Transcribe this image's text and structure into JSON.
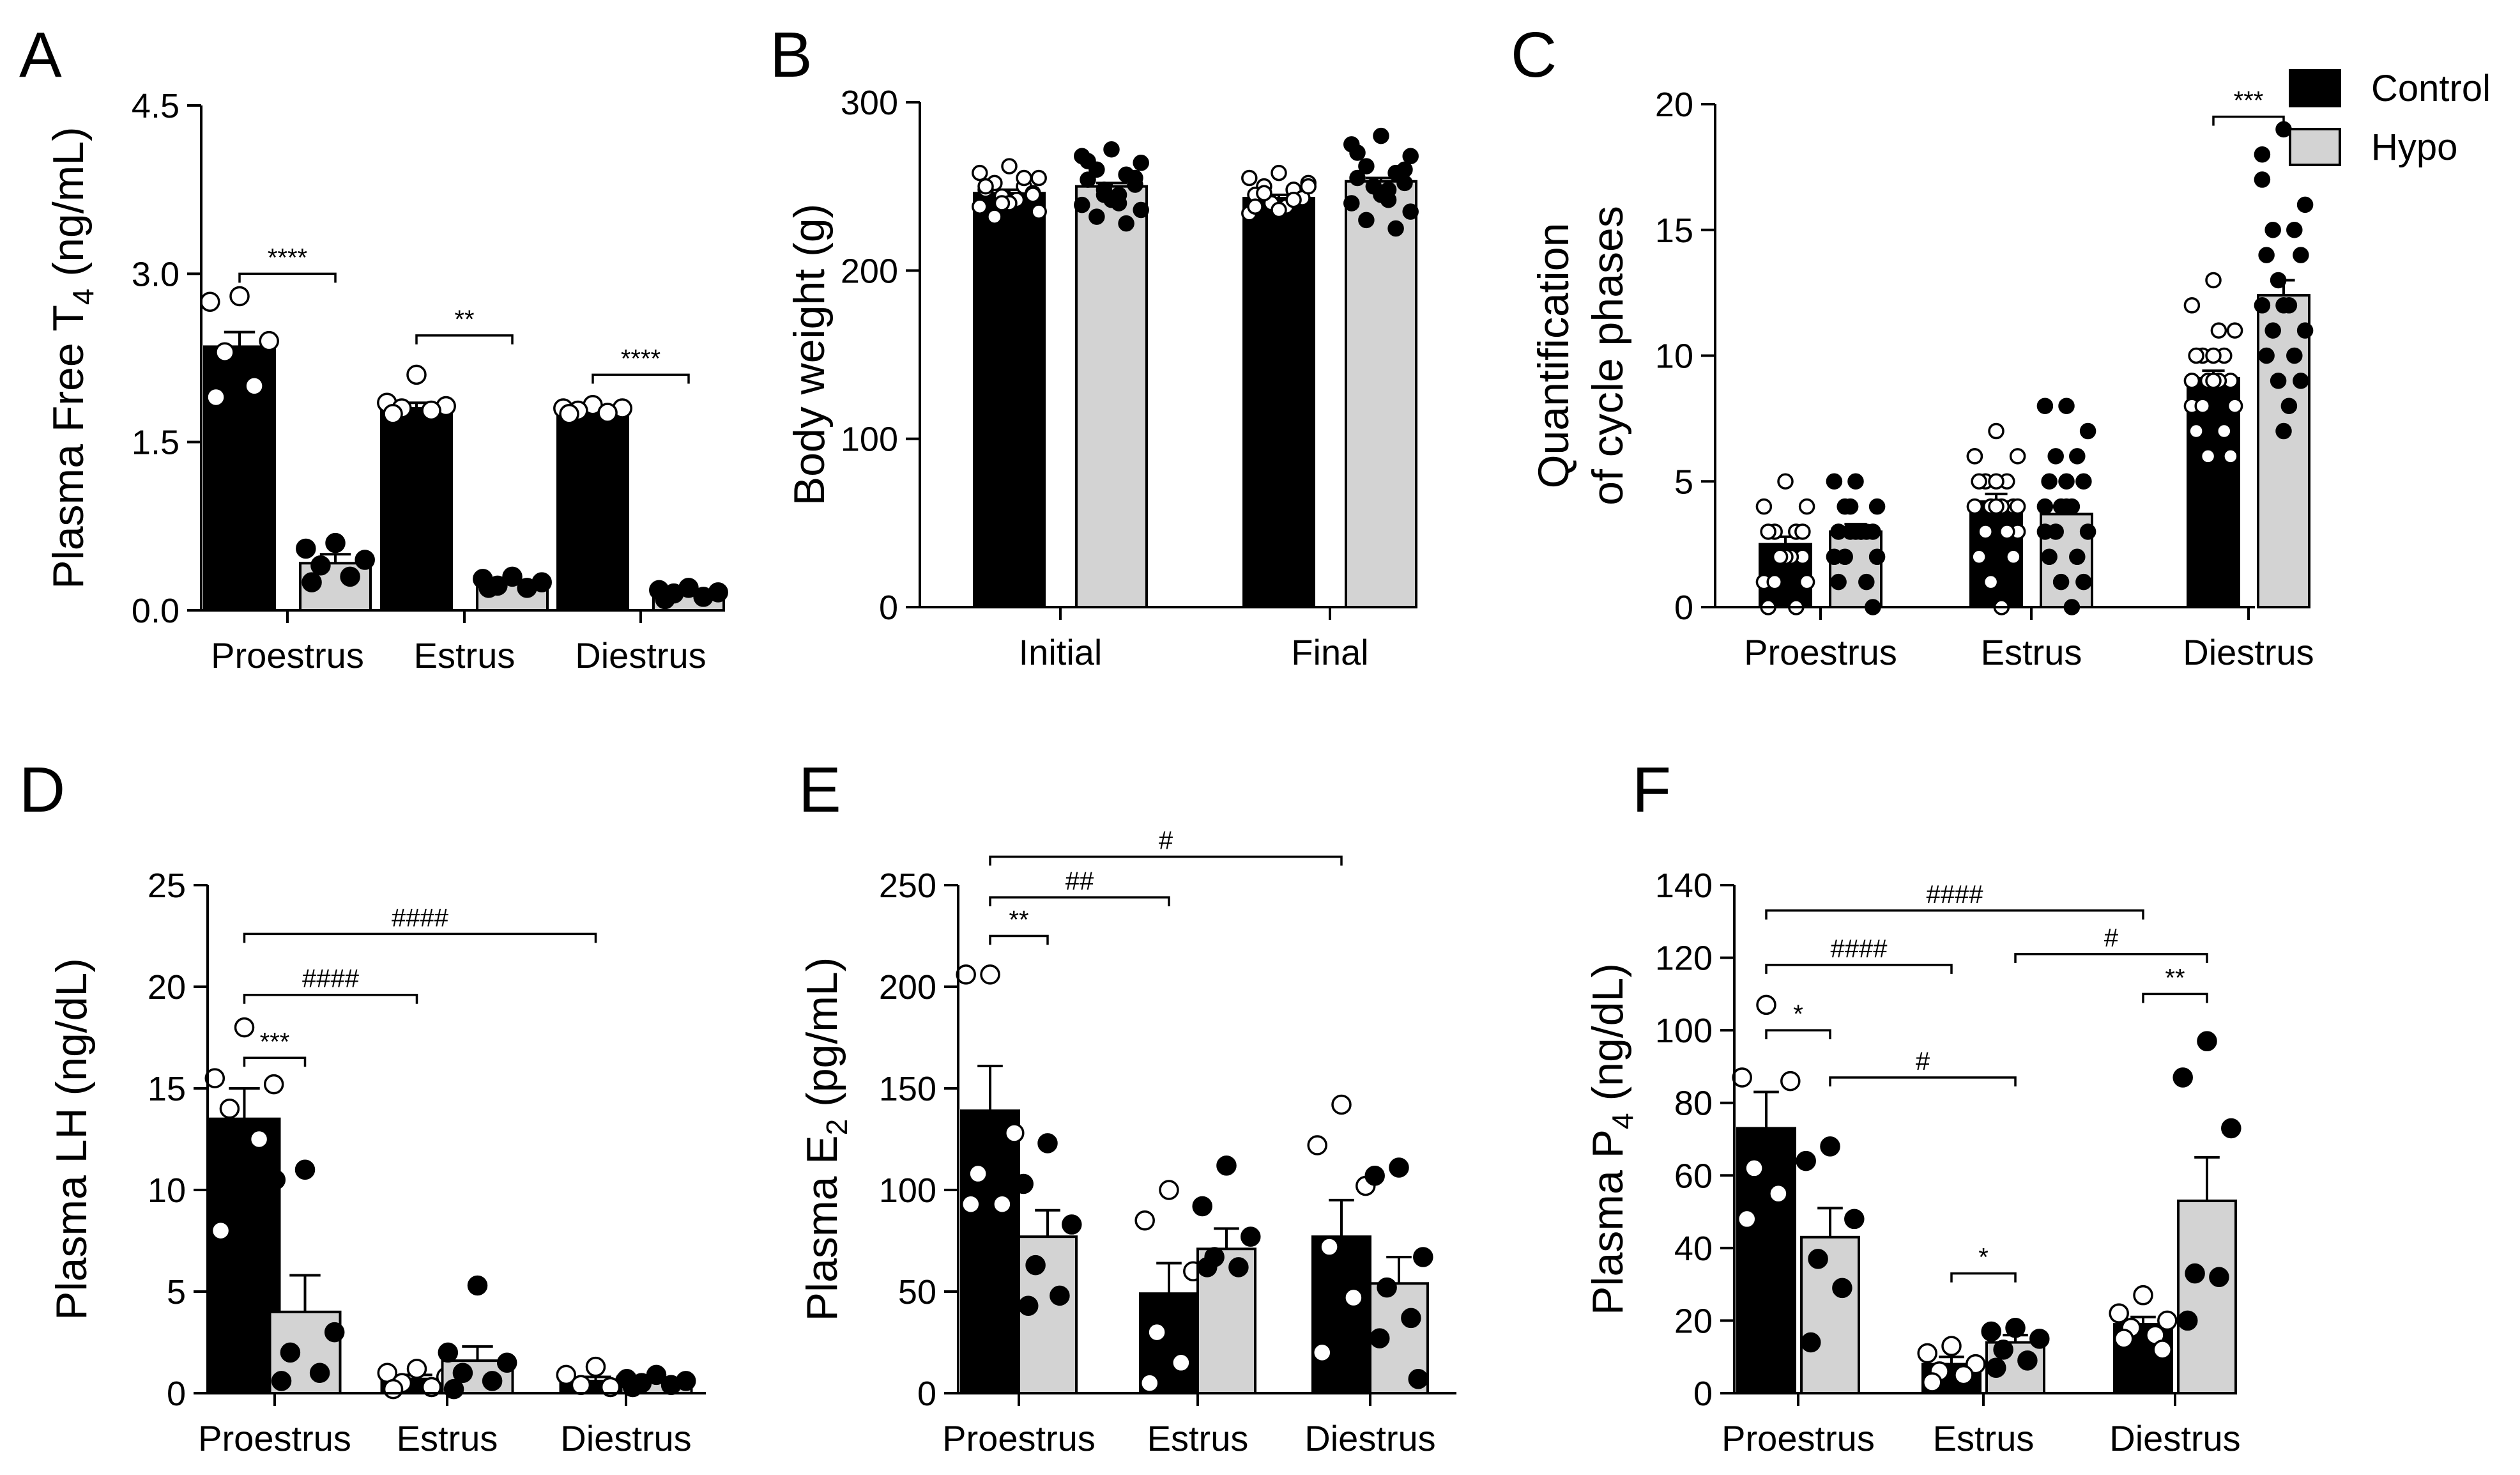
{
  "figure": {
    "legend": [
      {
        "label": "Control",
        "color": "#000000"
      },
      {
        "label": "Hypo",
        "color": "#d3d3d3"
      }
    ],
    "colors": {
      "control": "#000000",
      "hypo": "#d3d3d3",
      "axis": "#000000"
    }
  },
  "chart_data": [
    {
      "panel": "A",
      "type": "bar",
      "ylabel_main": "Plasma Free T",
      "ylabel_sub": "4",
      "ylabel_tail": " (ng/mL)",
      "categories": [
        "Proestrus",
        "Estrus",
        "Diestrus"
      ],
      "ylim": [
        0,
        4.5
      ],
      "yticks": [
        "0.0",
        "1.5",
        "3.0",
        "4.5"
      ],
      "ytick_values": [
        0,
        1.5,
        3.0,
        4.5
      ],
      "series": [
        {
          "name": "Control",
          "values": [
            2.35,
            1.8,
            1.75
          ],
          "errors": [
            0.13,
            0.05,
            0.02
          ],
          "points": [
            [
              2.8,
              2.75,
              2.4,
              2.3,
              2.0,
              1.9
            ],
            [
              2.1,
              1.85,
              1.82,
              1.8,
              1.78,
              1.75
            ],
            [
              1.83,
              1.8,
              1.8,
              1.78,
              1.76,
              1.75
            ]
          ]
        },
        {
          "name": "Hypo",
          "values": [
            0.42,
            0.24,
            0.16
          ],
          "errors": [
            0.08,
            0.03,
            0.02
          ],
          "points": [
            [
              0.6,
              0.55,
              0.45,
              0.4,
              0.3,
              0.25
            ],
            [
              0.3,
              0.28,
              0.25,
              0.22,
              0.2,
              0.2
            ],
            [
              0.2,
              0.18,
              0.16,
              0.15,
              0.12,
              0.1
            ]
          ]
        }
      ],
      "annotations": [
        {
          "label": "****",
          "group_from": 0,
          "bar_from": 0,
          "group_to": 0,
          "bar_to": 1,
          "y": 3.0
        },
        {
          "label": "**",
          "group_from": 1,
          "bar_from": 0,
          "group_to": 1,
          "bar_to": 1,
          "y": 2.45
        },
        {
          "label": "****",
          "group_from": 2,
          "bar_from": 0,
          "group_to": 2,
          "bar_to": 1,
          "y": 2.1
        }
      ]
    },
    {
      "panel": "B",
      "type": "bar",
      "ylabel_main": "Body weight (g)",
      "categories": [
        "Initial",
        "Final"
      ],
      "ylim": [
        0,
        300
      ],
      "yticks": [
        "0",
        "100",
        "200",
        "300"
      ],
      "ytick_values": [
        0,
        100,
        200,
        300
      ],
      "series": [
        {
          "name": "Control",
          "values": [
            246,
            243
          ],
          "errors": [
            2,
            2
          ],
          "points": [
            [
              262,
              258,
              255,
              252,
              250,
              248,
              246,
              244,
              242,
              240,
              238,
              235,
              232,
              255,
              250,
              245,
              240
            ],
            [
              258,
              255,
              252,
              250,
              248,
              245,
              243,
              240,
              238,
              236,
              234,
              250,
              246,
              242,
              238
            ]
          ]
        },
        {
          "name": "Hypo",
          "values": [
            250,
            253
          ],
          "errors": [
            2,
            2
          ],
          "points": [
            [
              272,
              268,
              264,
              260,
              257,
              254,
              251,
              248,
              245,
              242,
              239,
              236,
              232,
              228,
              265,
              255,
              245,
              240
            ],
            [
              280,
              275,
              268,
              262,
              258,
              255,
              252,
              250,
              248,
              245,
              240,
              235,
              230,
              225,
              270,
              260,
              250,
              242
            ]
          ]
        }
      ],
      "annotations": []
    },
    {
      "panel": "C",
      "type": "bar",
      "ylabel_main": "Quantification",
      "ylabel_second": "of cycle phases",
      "categories": [
        "Proestrus",
        "Estrus",
        "Diestrus"
      ],
      "ylim": [
        0,
        20
      ],
      "yticks": [
        "0",
        "5",
        "10",
        "15",
        "20"
      ],
      "ytick_values": [
        0,
        5,
        10,
        15,
        20
      ],
      "series": [
        {
          "name": "Control",
          "values": [
            2.5,
            4.2,
            9.1
          ],
          "errors": [
            0.3,
            0.3,
            0.3
          ],
          "points": [
            [
              5,
              4,
              4,
              3,
              3,
              3,
              2,
              2,
              2,
              2,
              1,
              1,
              1,
              0,
              0,
              3,
              2
            ],
            [
              7,
              6,
              6,
              5,
              5,
              5,
              4,
              4,
              4,
              4,
              4,
              3,
              3,
              3,
              2,
              2,
              1,
              0,
              5,
              6,
              4
            ],
            [
              13,
              12,
              11,
              10,
              10,
              10,
              9,
              9,
              9,
              9,
              8,
              8,
              8,
              7,
              7,
              6,
              6,
              11,
              10,
              9
            ]
          ]
        },
        {
          "name": "Hypo",
          "values": [
            3.0,
            3.7,
            12.4
          ],
          "errors": [
            0.3,
            0.4,
            0.6
          ],
          "points": [
            [
              5,
              5,
              4,
              4,
              3,
              3,
              3,
              3,
              3,
              3,
              2,
              2,
              2,
              1,
              1,
              0,
              4,
              3
            ],
            [
              8,
              8,
              7,
              6,
              6,
              5,
              5,
              4,
              4,
              4,
              3,
              3,
              3,
              2,
              2,
              1,
              1,
              0,
              5,
              4
            ],
            [
              19,
              18,
              16,
              15,
              15,
              14,
              14,
              13,
              12,
              12,
              12,
              11,
              11,
              10,
              10,
              9,
              9,
              8,
              7,
              17
            ]
          ]
        }
      ],
      "annotations": [
        {
          "label": "***",
          "group_from": 2,
          "bar_from": 0,
          "group_to": 2,
          "bar_to": 1,
          "y": 19.5
        }
      ]
    },
    {
      "panel": "D",
      "type": "bar",
      "ylabel_main": "Plasma LH (ng/dL)",
      "categories": [
        "Proestrus",
        "Estrus",
        "Diestrus"
      ],
      "ylim": [
        0,
        25
      ],
      "yticks": [
        "0",
        "5",
        "10",
        "15",
        "20",
        "25"
      ],
      "ytick_values": [
        0,
        5,
        10,
        15,
        20,
        25
      ],
      "series": [
        {
          "name": "Control",
          "values": [
            13.5,
            0.7,
            0.6
          ],
          "errors": [
            1.5,
            0.2,
            0.2
          ],
          "points": [
            [
              18,
              15.5,
              15.2,
              14,
              12.5,
              8
            ],
            [
              1.2,
              1,
              0.8,
              0.5,
              0.3,
              0.2
            ],
            [
              1.3,
              0.9,
              0.6,
              0.4,
              0.3
            ]
          ]
        },
        {
          "name": "Hypo",
          "values": [
            4.0,
            1.6,
            0.6
          ],
          "errors": [
            1.8,
            0.7,
            0.1
          ],
          "points": [
            [
              11,
              10.5,
              3,
              2,
              1,
              0.6
            ],
            [
              5.3,
              2,
              1.5,
              1,
              0.6,
              0.2
            ],
            [
              0.9,
              0.7,
              0.6,
              0.5,
              0.4,
              0.3
            ]
          ]
        }
      ],
      "annotations": [
        {
          "label": "***",
          "group_from": 0,
          "bar_from": 0,
          "group_to": 0,
          "bar_to": 1,
          "y": 16.5
        },
        {
          "label": "####",
          "group_from": 0,
          "bar_from": 0,
          "group_to": 1,
          "bar_to": 0,
          "y": 19.6
        },
        {
          "label": "####",
          "group_from": 0,
          "bar_from": 0,
          "group_to": 2,
          "bar_to": 0,
          "y": 22.6
        }
      ]
    },
    {
      "panel": "E",
      "type": "bar",
      "ylabel_main": "Plasma E",
      "ylabel_sub": "2",
      "ylabel_tail": " (pg/mL)",
      "categories": [
        "Proestrus",
        "Estrus",
        "Diestrus"
      ],
      "ylim": [
        0,
        250
      ],
      "yticks": [
        "0",
        "50",
        "100",
        "150",
        "200",
        "250"
      ],
      "ytick_values": [
        0,
        50,
        100,
        150,
        200,
        250
      ],
      "series": [
        {
          "name": "Control",
          "values": [
            139,
            49,
            77
          ],
          "errors": [
            22,
            15,
            18
          ],
          "points": [
            [
              206,
              206,
              128,
              108,
              93,
              93
            ],
            [
              100,
              85,
              60,
              30,
              15,
              5
            ],
            [
              142,
              122,
              102,
              72,
              47,
              20
            ]
          ]
        },
        {
          "name": "Hypo",
          "values": [
            77,
            71,
            54
          ],
          "errors": [
            13,
            10,
            13
          ],
          "points": [
            [
              123,
              103,
              83,
              63,
              48,
              43
            ],
            [
              112,
              92,
              77,
              67,
              62,
              62
            ],
            [
              111,
              107,
              67,
              52,
              37,
              27,
              7
            ]
          ]
        }
      ],
      "annotations": [
        {
          "label": "**",
          "group_from": 0,
          "bar_from": 0,
          "group_to": 0,
          "bar_to": 1,
          "y": 225
        },
        {
          "label": "##",
          "group_from": 0,
          "bar_from": 0,
          "group_to": 1,
          "bar_to": 0,
          "y": 244
        },
        {
          "label": "#",
          "group_from": 0,
          "bar_from": 0,
          "group_to": 2,
          "bar_to": 0,
          "y": 264
        }
      ]
    },
    {
      "panel": "F",
      "type": "bar",
      "ylabel_main": "Plasma P",
      "ylabel_sub": "4",
      "ylabel_tail": " (ng/dL)",
      "categories": [
        "Proestrus",
        "Estrus",
        "Diestrus"
      ],
      "ylim": [
        0,
        140
      ],
      "yticks": [
        "0",
        "20",
        "40",
        "60",
        "80",
        "100",
        "120",
        "140"
      ],
      "ytick_values": [
        0,
        20,
        40,
        60,
        80,
        100,
        120,
        140
      ],
      "series": [
        {
          "name": "Control",
          "values": [
            73,
            8,
            19
          ],
          "errors": [
            10,
            2,
            2
          ],
          "points": [
            [
              107,
              87,
              86,
              62,
              55,
              48
            ],
            [
              13,
              11,
              8,
              6,
              5,
              3
            ],
            [
              27,
              22,
              20,
              18,
              16,
              15,
              12
            ]
          ]
        },
        {
          "name": "Hypo",
          "values": [
            43,
            14,
            53
          ],
          "errors": [
            8,
            2,
            12
          ],
          "points": [
            [
              68,
              64,
              48,
              37,
              29,
              14
            ],
            [
              18,
              17,
              15,
              12,
              9,
              7
            ],
            [
              97,
              87,
              73,
              33,
              32,
              20
            ]
          ]
        }
      ],
      "annotations": [
        {
          "label": "*",
          "group_from": 0,
          "bar_from": 0,
          "group_to": 0,
          "bar_to": 1,
          "y": 100
        },
        {
          "label": "####",
          "group_from": 0,
          "bar_from": 0,
          "group_to": 1,
          "bar_to": 0,
          "y": 118
        },
        {
          "label": "####",
          "group_from": 0,
          "bar_from": 0,
          "group_to": 2,
          "bar_to": 0,
          "y": 133
        },
        {
          "label": "#",
          "group_from": 0,
          "bar_from": 1,
          "group_to": 1,
          "bar_to": 1,
          "y": 87
        },
        {
          "label": "*",
          "group_from": 1,
          "bar_from": 0,
          "group_to": 1,
          "bar_to": 1,
          "y": 33
        },
        {
          "label": "**",
          "group_from": 2,
          "bar_from": 0,
          "group_to": 2,
          "bar_to": 1,
          "y": 110
        },
        {
          "label": "#",
          "group_from": 1,
          "bar_from": 1,
          "group_to": 2,
          "bar_to": 1,
          "y": 121
        }
      ]
    }
  ]
}
